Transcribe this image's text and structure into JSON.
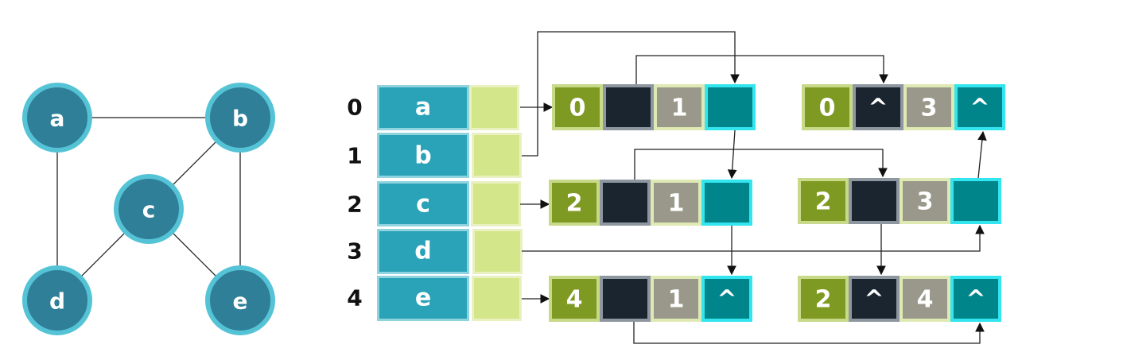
{
  "graph": {
    "vertices": [
      {
        "id": "a"
      },
      {
        "id": "b"
      },
      {
        "id": "c"
      },
      {
        "id": "d"
      },
      {
        "id": "e"
      }
    ],
    "edges": [
      [
        "a",
        "b"
      ],
      [
        "a",
        "d"
      ],
      [
        "b",
        "c"
      ],
      [
        "b",
        "e"
      ],
      [
        "c",
        "d"
      ],
      [
        "c",
        "e"
      ]
    ]
  },
  "vertex_table": {
    "rows": [
      {
        "index": "0",
        "label": "a"
      },
      {
        "index": "1",
        "label": "b"
      },
      {
        "index": "2",
        "label": "c"
      },
      {
        "index": "3",
        "label": "d"
      },
      {
        "index": "4",
        "label": "e"
      }
    ]
  },
  "edge_nodes": [
    {
      "id": "n01",
      "ivex": "0",
      "jvex": "1",
      "ilink_null": false,
      "jlink_null": false
    },
    {
      "id": "n03",
      "ivex": "0",
      "jvex": "3",
      "ilink_null": true,
      "jlink_null": true
    },
    {
      "id": "n21",
      "ivex": "2",
      "jvex": "1",
      "ilink_null": false,
      "jlink_null": false
    },
    {
      "id": "n23",
      "ivex": "2",
      "jvex": "3",
      "ilink_null": false,
      "jlink_null": false
    },
    {
      "id": "n41",
      "ivex": "4",
      "jvex": "1",
      "ilink_null": false,
      "jlink_null": true
    },
    {
      "id": "n24",
      "ivex": "2",
      "jvex": "4",
      "ilink_null": true,
      "jlink_null": true
    }
  ],
  "null_symbol": "^",
  "colors": {
    "vertex_fill": "#2f7f98",
    "vertex_ring": "#55c3d6",
    "table_cell": "#2aa3b8",
    "table_cell_border": "#8fd3df",
    "pointer_cell": "#d4e68a",
    "pointer_cell_border": "#e9f1c0",
    "ivex_cell": "#7f9a22",
    "ilink_cell": "#1b2530",
    "jvex_cell": "#9a988a",
    "jlink_cell": "#00858a",
    "jlink_border": "#33e5ee"
  }
}
